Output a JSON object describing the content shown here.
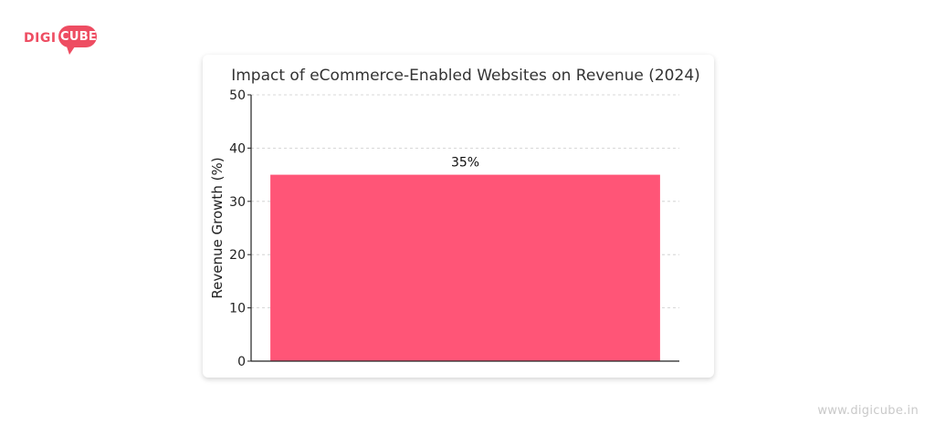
{
  "brand": {
    "logo_left": "DIGI",
    "logo_right": "CUBE",
    "watermark": "www.digicube.in",
    "accent_color": "#ee4d62"
  },
  "chart_data": {
    "type": "bar",
    "title": "Impact of eCommerce-Enabled Websites on Revenue (2024)",
    "xlabel": "",
    "ylabel": "Revenue Growth (%)",
    "categories": [
      ""
    ],
    "values": [
      35
    ],
    "data_labels": [
      "35%"
    ],
    "ylim": [
      0,
      50
    ],
    "yticks": [
      0,
      10,
      20,
      30,
      40,
      50
    ],
    "grid": true,
    "bar_color": "#ff5577"
  }
}
